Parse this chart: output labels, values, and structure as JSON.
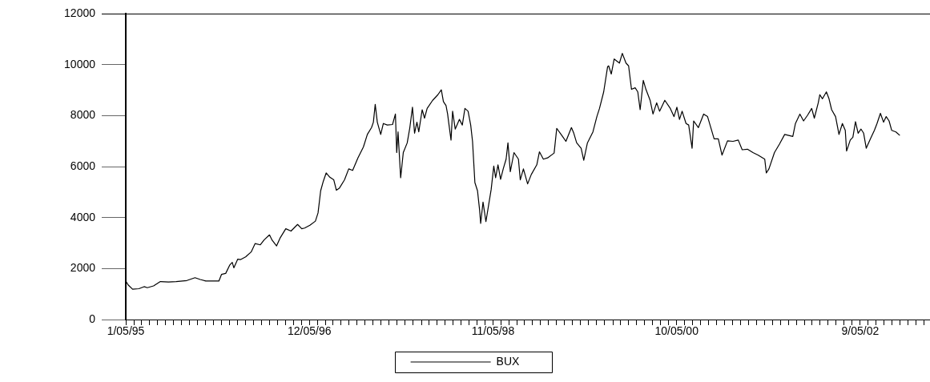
{
  "chart_data": {
    "type": "line",
    "legend": "bottom",
    "grid": false,
    "x": [
      "1995-01-05",
      "1995-01-14",
      "1995-01-31",
      "1995-02-24",
      "1995-03-16",
      "1995-03-28",
      "1995-04-21",
      "1995-05-17",
      "1995-06-17",
      "1995-07-16",
      "1995-08-26",
      "1995-09-26",
      "1995-10-16",
      "1995-11-06",
      "1995-12-07",
      "1995-12-26",
      "1996-01-05",
      "1996-01-21",
      "1996-02-05",
      "1996-02-15",
      "1996-02-21",
      "1996-03-07",
      "1996-03-17",
      "1996-04-06",
      "1996-04-27",
      "1996-05-12",
      "1996-06-01",
      "1996-06-16",
      "1996-07-06",
      "1996-07-16",
      "1996-08-02",
      "1996-08-16",
      "1996-09-06",
      "1996-09-26",
      "1996-10-21",
      "1996-11-06",
      "1996-11-17",
      "1996-12-07",
      "1996-12-28",
      "1997-01-07",
      "1997-01-17",
      "1997-01-27",
      "1997-02-07",
      "1997-02-21",
      "1997-03-08",
      "1997-03-18",
      "1997-03-29",
      "1997-04-18",
      "1997-05-04",
      "1997-05-19",
      "1997-06-08",
      "1997-06-29",
      "1997-07-14",
      "1997-07-30",
      "1997-08-06",
      "1997-08-13",
      "1997-08-21",
      "1997-09-03",
      "1997-09-13",
      "1997-09-28",
      "1997-10-18",
      "1997-10-29",
      "1997-11-03",
      "1997-11-08",
      "1997-11-18",
      "1997-11-28",
      "1997-12-13",
      "1997-12-23",
      "1998-01-02",
      "1998-01-10",
      "1998-01-19",
      "1998-01-26",
      "1998-02-08",
      "1998-02-17",
      "1998-02-27",
      "1998-03-20",
      "1998-04-09",
      "1998-04-22",
      "1998-04-30",
      "1998-05-10",
      "1998-05-16",
      "1998-05-20",
      "1998-05-29",
      "1998-06-04",
      "1998-06-14",
      "1998-06-30",
      "1998-07-11",
      "1998-07-21",
      "1998-08-02",
      "1998-08-12",
      "1998-08-19",
      "1998-08-28",
      "1998-09-07",
      "1998-09-15",
      "1998-09-19",
      "1998-09-28",
      "1998-10-09",
      "1998-10-29",
      "1998-11-08",
      "1998-11-15",
      "1998-11-24",
      "1998-12-04",
      "1998-12-14",
      "1998-12-25",
      "1999-01-01",
      "1999-01-10",
      "1999-01-24",
      "1999-02-10",
      "1999-02-17",
      "1999-03-01",
      "1999-03-17",
      "1999-03-31",
      "1999-04-21",
      "1999-05-01",
      "1999-05-16",
      "1999-06-01",
      "1999-06-26",
      "1999-07-06",
      "1999-07-27",
      "1999-08-10",
      "1999-08-31",
      "1999-09-09",
      "1999-09-20",
      "1999-10-07",
      "1999-10-17",
      "1999-10-31",
      "1999-11-21",
      "1999-12-06",
      "1999-12-16",
      "2000-01-01",
      "2000-01-16",
      "2000-01-20",
      "2000-01-30",
      "2000-02-10",
      "2000-03-01",
      "2000-03-12",
      "2000-03-26",
      "2000-04-05",
      "2000-04-16",
      "2000-04-30",
      "2000-05-10",
      "2000-05-19",
      "2000-05-31",
      "2000-06-10",
      "2000-06-26",
      "2000-07-07",
      "2000-07-21",
      "2000-08-01",
      "2000-08-21",
      "2000-09-11",
      "2000-09-25",
      "2000-10-06",
      "2000-10-16",
      "2000-10-26",
      "2000-11-10",
      "2000-11-20",
      "2000-12-03",
      "2000-12-09",
      "2000-12-27",
      "2001-01-16",
      "2001-01-31",
      "2001-02-14",
      "2001-02-25",
      "2001-03-13",
      "2001-03-27",
      "2001-04-17",
      "2001-05-08",
      "2001-05-28",
      "2001-06-12",
      "2001-07-02",
      "2001-07-23",
      "2001-08-12",
      "2001-09-06",
      "2001-09-12",
      "2001-09-22",
      "2001-10-13",
      "2001-11-01",
      "2001-11-21",
      "2001-12-22",
      "2002-01-01",
      "2002-01-18",
      "2002-02-01",
      "2002-02-16",
      "2002-03-04",
      "2002-03-14",
      "2002-03-29",
      "2002-04-04",
      "2002-04-14",
      "2002-04-29",
      "2002-05-09",
      "2002-05-19",
      "2002-06-03",
      "2002-06-16",
      "2002-06-29",
      "2002-07-10",
      "2002-07-15",
      "2002-07-29",
      "2002-08-08",
      "2002-08-18",
      "2002-08-28",
      "2002-09-08",
      "2002-09-18",
      "2002-09-28",
      "2002-10-14",
      "2002-10-29",
      "2002-11-08",
      "2002-11-21",
      "2002-12-03",
      "2002-12-13",
      "2002-12-24",
      "2003-01-03",
      "2003-01-19",
      "2003-02-03"
    ],
    "series": [
      {
        "name": "BUX",
        "color": "#000000",
        "values": [
          1510,
          1360,
          1190,
          1210,
          1290,
          1250,
          1320,
          1490,
          1470,
          1490,
          1530,
          1640,
          1570,
          1510,
          1510,
          1510,
          1770,
          1810,
          2130,
          2240,
          2030,
          2370,
          2350,
          2460,
          2650,
          2980,
          2930,
          3130,
          3320,
          3110,
          2890,
          3210,
          3560,
          3470,
          3730,
          3560,
          3590,
          3700,
          3860,
          4180,
          5050,
          5420,
          5750,
          5580,
          5480,
          5070,
          5150,
          5480,
          5910,
          5850,
          6340,
          6770,
          7260,
          7530,
          7740,
          8440,
          7740,
          7260,
          7690,
          7630,
          7650,
          8060,
          6550,
          7360,
          5560,
          6550,
          6930,
          7530,
          8330,
          7310,
          7740,
          7360,
          8230,
          7900,
          8280,
          8600,
          8820,
          9010,
          8550,
          8390,
          8060,
          7740,
          7040,
          8170,
          7470,
          7850,
          7630,
          8280,
          8170,
          7630,
          6990,
          5370,
          5050,
          4290,
          3770,
          4610,
          3840,
          5100,
          6020,
          5560,
          6070,
          5500,
          5910,
          6290,
          6930,
          5800,
          6550,
          6290,
          5480,
          5910,
          5320,
          5690,
          6070,
          6580,
          6290,
          6340,
          6530,
          7500,
          7200,
          6990,
          7530,
          7310,
          6930,
          6720,
          6250,
          6930,
          7360,
          7960,
          8280,
          8930,
          9920,
          9950,
          9630,
          10220,
          10060,
          10440,
          10060,
          9950,
          9030,
          9090,
          8930,
          8230,
          9380,
          9030,
          8600,
          8060,
          8500,
          8170,
          8600,
          8280,
          7960,
          8330,
          7850,
          8170,
          7690,
          7630,
          6720,
          7790,
          7530,
          8060,
          7960,
          7470,
          7090,
          7090,
          6450,
          7010,
          6990,
          7040,
          6660,
          6680,
          6550,
          6450,
          6290,
          5750,
          5910,
          6550,
          6880,
          7260,
          7180,
          7690,
          8060,
          7790,
          8010,
          8280,
          7900,
          8500,
          8820,
          8660,
          8930,
          8660,
          8230,
          7960,
          7260,
          7690,
          7420,
          6610,
          7040,
          7150,
          7760,
          7310,
          7470,
          7310,
          6720,
          7090,
          7420,
          7690,
          8090,
          7740,
          7960,
          7790,
          7420,
          7360,
          7220
        ]
      }
    ],
    "xlim": [
      "1995-01-05",
      "2003-05-29"
    ],
    "xticks": [
      {
        "value": "1995-01-05",
        "label": "1/05/95"
      },
      {
        "value": "1995-02-05",
        "label": null
      },
      {
        "value": "1995-03-05",
        "label": null
      },
      {
        "value": "1995-04-05",
        "label": null
      },
      {
        "value": "1995-05-05",
        "label": null
      },
      {
        "value": "1995-06-05",
        "label": null
      },
      {
        "value": "1995-07-05",
        "label": null
      },
      {
        "value": "1995-08-05",
        "label": null
      },
      {
        "value": "1995-09-05",
        "label": null
      },
      {
        "value": "1995-10-05",
        "label": null
      },
      {
        "value": "1995-11-05",
        "label": null
      },
      {
        "value": "1995-12-05",
        "label": null
      },
      {
        "value": "1996-01-05",
        "label": null
      },
      {
        "value": "1996-02-05",
        "label": null
      },
      {
        "value": "1996-03-05",
        "label": null
      },
      {
        "value": "1996-04-05",
        "label": null
      },
      {
        "value": "1996-05-05",
        "label": null
      },
      {
        "value": "1996-06-05",
        "label": null
      },
      {
        "value": "1996-07-05",
        "label": null
      },
      {
        "value": "1996-08-05",
        "label": null
      },
      {
        "value": "1996-09-05",
        "label": null
      },
      {
        "value": "1996-10-05",
        "label": null
      },
      {
        "value": "1996-11-05",
        "label": null
      },
      {
        "value": "1996-12-05",
        "label": "12/05/96"
      },
      {
        "value": "1997-01-05",
        "label": null
      },
      {
        "value": "1997-02-05",
        "label": null
      },
      {
        "value": "1997-03-05",
        "label": null
      },
      {
        "value": "1997-04-05",
        "label": null
      },
      {
        "value": "1997-05-05",
        "label": null
      },
      {
        "value": "1997-06-05",
        "label": null
      },
      {
        "value": "1997-07-05",
        "label": null
      },
      {
        "value": "1997-08-05",
        "label": null
      },
      {
        "value": "1997-09-05",
        "label": null
      },
      {
        "value": "1997-10-05",
        "label": null
      },
      {
        "value": "1997-11-05",
        "label": null
      },
      {
        "value": "1997-12-05",
        "label": null
      },
      {
        "value": "1998-01-05",
        "label": null
      },
      {
        "value": "1998-02-05",
        "label": null
      },
      {
        "value": "1998-03-05",
        "label": null
      },
      {
        "value": "1998-04-05",
        "label": null
      },
      {
        "value": "1998-05-05",
        "label": null
      },
      {
        "value": "1998-06-05",
        "label": null
      },
      {
        "value": "1998-07-05",
        "label": null
      },
      {
        "value": "1998-08-05",
        "label": null
      },
      {
        "value": "1998-09-05",
        "label": null
      },
      {
        "value": "1998-10-05",
        "label": null
      },
      {
        "value": "1998-11-05",
        "label": "11/05/98"
      },
      {
        "value": "1998-12-05",
        "label": null
      },
      {
        "value": "1999-01-05",
        "label": null
      },
      {
        "value": "1999-02-05",
        "label": null
      },
      {
        "value": "1999-03-05",
        "label": null
      },
      {
        "value": "1999-04-05",
        "label": null
      },
      {
        "value": "1999-05-05",
        "label": null
      },
      {
        "value": "1999-06-05",
        "label": null
      },
      {
        "value": "1999-07-05",
        "label": null
      },
      {
        "value": "1999-08-05",
        "label": null
      },
      {
        "value": "1999-09-05",
        "label": null
      },
      {
        "value": "1999-10-05",
        "label": null
      },
      {
        "value": "1999-11-05",
        "label": null
      },
      {
        "value": "1999-12-05",
        "label": null
      },
      {
        "value": "2000-01-05",
        "label": null
      },
      {
        "value": "2000-02-05",
        "label": null
      },
      {
        "value": "2000-03-05",
        "label": null
      },
      {
        "value": "2000-04-05",
        "label": null
      },
      {
        "value": "2000-05-05",
        "label": null
      },
      {
        "value": "2000-06-05",
        "label": null
      },
      {
        "value": "2000-07-05",
        "label": null
      },
      {
        "value": "2000-08-05",
        "label": null
      },
      {
        "value": "2000-09-05",
        "label": null
      },
      {
        "value": "2000-10-05",
        "label": "10/05/00"
      },
      {
        "value": "2000-11-05",
        "label": null
      },
      {
        "value": "2000-12-05",
        "label": null
      },
      {
        "value": "2001-01-05",
        "label": null
      },
      {
        "value": "2001-02-05",
        "label": null
      },
      {
        "value": "2001-03-05",
        "label": null
      },
      {
        "value": "2001-04-05",
        "label": null
      },
      {
        "value": "2001-05-05",
        "label": null
      },
      {
        "value": "2001-06-05",
        "label": null
      },
      {
        "value": "2001-07-05",
        "label": null
      },
      {
        "value": "2001-08-05",
        "label": null
      },
      {
        "value": "2001-09-05",
        "label": null
      },
      {
        "value": "2001-10-05",
        "label": null
      },
      {
        "value": "2001-11-05",
        "label": null
      },
      {
        "value": "2001-12-05",
        "label": null
      },
      {
        "value": "2002-01-05",
        "label": null
      },
      {
        "value": "2002-02-05",
        "label": null
      },
      {
        "value": "2002-03-05",
        "label": null
      },
      {
        "value": "2002-04-05",
        "label": null
      },
      {
        "value": "2002-05-05",
        "label": null
      },
      {
        "value": "2002-06-05",
        "label": null
      },
      {
        "value": "2002-07-05",
        "label": null
      },
      {
        "value": "2002-08-05",
        "label": null
      },
      {
        "value": "2002-09-05",
        "label": "9/05/02"
      },
      {
        "value": "2002-10-05",
        "label": null
      },
      {
        "value": "2002-11-05",
        "label": null
      },
      {
        "value": "2002-12-05",
        "label": null
      },
      {
        "value": "2003-01-05",
        "label": null
      },
      {
        "value": "2003-02-05",
        "label": null
      },
      {
        "value": "2003-03-05",
        "label": null
      },
      {
        "value": "2003-04-05",
        "label": null
      },
      {
        "value": "2003-05-05",
        "label": null
      }
    ],
    "ylim": [
      0,
      12000
    ],
    "yticks": [
      0,
      2000,
      4000,
      6000,
      8000,
      10000,
      12000
    ]
  }
}
